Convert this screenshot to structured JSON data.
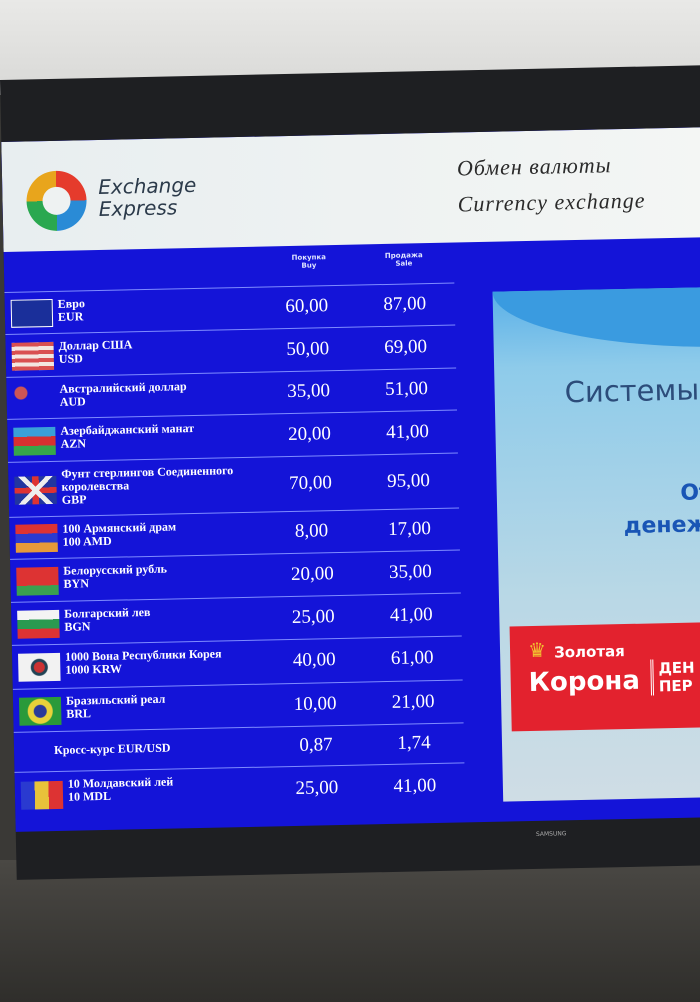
{
  "header": {
    "brand_line1": "Exchange",
    "brand_line2": "Express",
    "title_ru": "Обмен валюты",
    "title_en": "Currency exchange"
  },
  "columns": {
    "buy": "Покупка\nBuy",
    "sale": "Продажа\nSale"
  },
  "rates": [
    {
      "name": "Евро",
      "code": "EUR",
      "buy": "60,00",
      "sale": "87,00",
      "flag": "eu"
    },
    {
      "name": "Доллар США",
      "code": "USD",
      "buy": "50,00",
      "sale": "69,00",
      "flag": "us"
    },
    {
      "name": "Австралийский доллар",
      "code": "AUD",
      "buy": "35,00",
      "sale": "51,00",
      "flag": "au"
    },
    {
      "name": "Азербайджанский манат",
      "code": "AZN",
      "buy": "20,00",
      "sale": "41,00",
      "flag": "az"
    },
    {
      "name": "Фунт стерлингов Соединенного королевства",
      "code": "GBP",
      "buy": "70,00",
      "sale": "95,00",
      "flag": "gb"
    },
    {
      "name": "100 Армянский драм",
      "code": "100 AMD",
      "buy": "8,00",
      "sale": "17,00",
      "flag": "am"
    },
    {
      "name": "Белорусский рубль",
      "code": "BYN",
      "buy": "20,00",
      "sale": "35,00",
      "flag": "by"
    },
    {
      "name": "Болгарский лев",
      "code": "BGN",
      "buy": "25,00",
      "sale": "41,00",
      "flag": "bg"
    },
    {
      "name": "1000 Вона Республики Корея",
      "code": "1000 KRW",
      "buy": "40,00",
      "sale": "61,00",
      "flag": "kr"
    },
    {
      "name": "Бразильский реал",
      "code": "BRL",
      "buy": "10,00",
      "sale": "21,00",
      "flag": "br"
    },
    {
      "name": "Кросс-курс EUR/USD",
      "code": "",
      "buy": "0,87",
      "sale": "1,74",
      "flag": ""
    },
    {
      "name": "10 Молдавский лей",
      "code": "10 MDL",
      "buy": "25,00",
      "sale": "41,00",
      "flag": "md"
    }
  ],
  "ad": {
    "text1": "Системы",
    "text2": "Отпр",
    "text3": "денежны",
    "brand1": "Золотая",
    "brand2": "Корона",
    "brand3a": "ДЕН",
    "brand3b": "ПЕР"
  },
  "tv_brand": "SAMSUNG"
}
